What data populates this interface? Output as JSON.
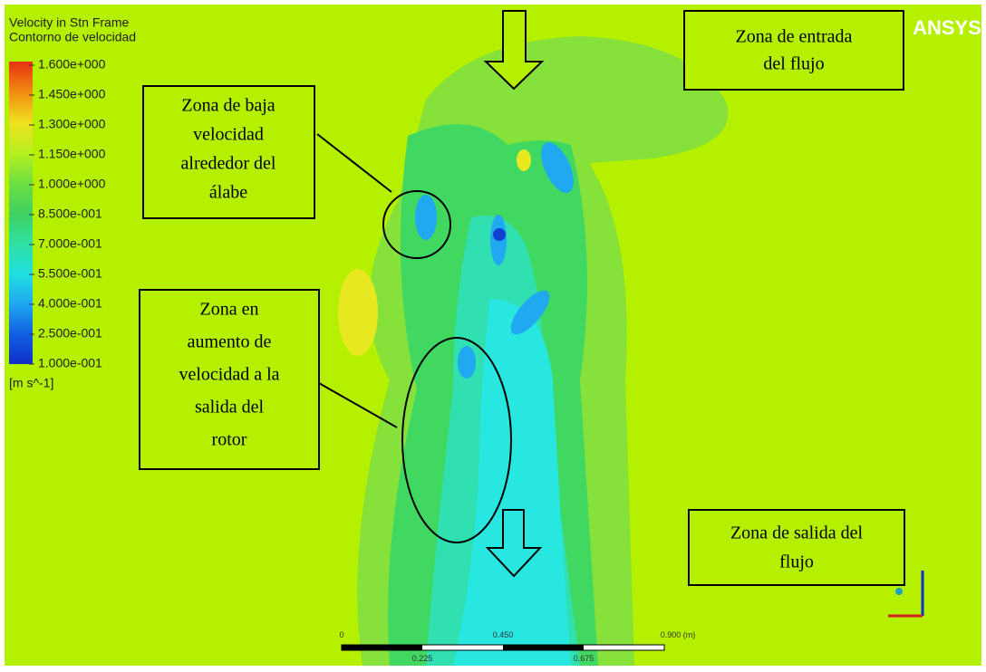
{
  "legend": {
    "title": "Velocity in Stn Frame",
    "subtitle": "Contorno de velocidad",
    "levels": [
      "1.600e+000",
      "1.450e+000",
      "1.300e+000",
      "1.150e+000",
      "1.000e+000",
      "8.500e-001",
      "7.000e-001",
      "5.500e-001",
      "4.000e-001",
      "2.500e-001",
      "1.000e-001"
    ],
    "units": "[m s^-1]"
  },
  "logo": "ANSYS",
  "annotations": {
    "inlet": [
      "Zona de entrada",
      "del flujo"
    ],
    "low_speed": [
      "Zona de baja",
      "velocidad",
      "alrededor del",
      "álabe"
    ],
    "increase": [
      "Zona en",
      "aumento de",
      "velocidad a la",
      "salida del",
      "rotor"
    ],
    "outlet": [
      "Zona de salida del",
      "flujo"
    ]
  },
  "scale_bar": {
    "top": [
      "0",
      "0.450",
      "0.900  (m)"
    ],
    "bottom": [
      "0.225",
      "0.675"
    ]
  }
}
